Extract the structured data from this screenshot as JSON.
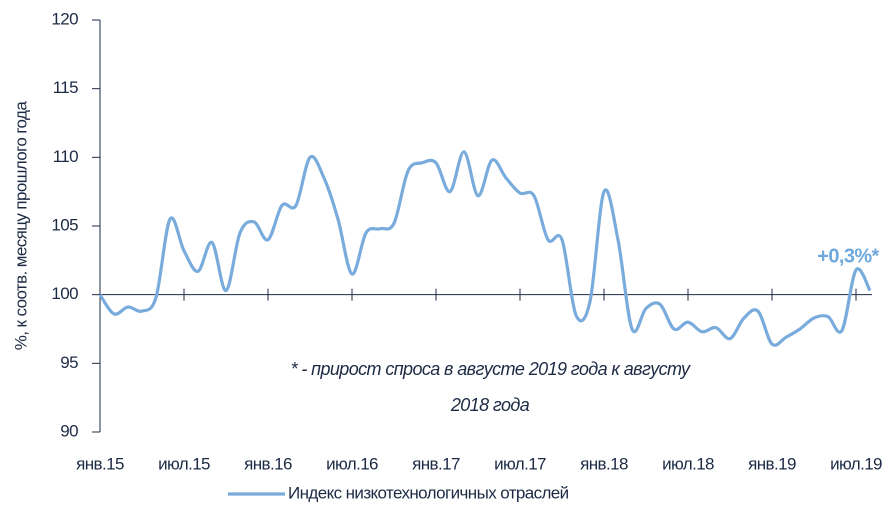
{
  "chart_data": {
    "type": "line",
    "ylabel": "%, к соотв. месяцу прошлого года",
    "categories": [
      "янв.15",
      null,
      null,
      null,
      null,
      null,
      "июл.15",
      null,
      null,
      null,
      null,
      null,
      "янв.16",
      null,
      null,
      null,
      null,
      null,
      "июл.16",
      null,
      null,
      null,
      null,
      null,
      "янв.17",
      null,
      null,
      null,
      null,
      null,
      "июл.17",
      null,
      null,
      null,
      null,
      null,
      "янв.18",
      null,
      null,
      null,
      null,
      null,
      "июл.18",
      null,
      null,
      null,
      null,
      null,
      "янв.19",
      null,
      null,
      null,
      null,
      null,
      "июл.19",
      null
    ],
    "series": [
      {
        "name": "Индекс низкотехнологичных отраслей",
        "color": "#79acdc",
        "values": [
          100,
          98.6,
          99.1,
          98.8,
          99.8,
          105.5,
          103.2,
          101.7,
          103.8,
          100.3,
          104.5,
          105.3,
          104.0,
          106.5,
          106.5,
          110.0,
          108.5,
          105.5,
          101.5,
          104.5,
          104.8,
          105.2,
          109.0,
          109.6,
          109.6,
          107.5,
          110.4,
          107.2,
          109.8,
          108.5,
          107.4,
          107.2,
          104.0,
          104.0,
          98.5,
          99.5,
          107.5,
          104.0,
          97.5,
          99.0,
          99.3,
          97.5,
          98.0,
          97.3,
          97.6,
          96.8,
          98.3,
          98.8,
          96.4,
          96.9,
          97.5,
          98.3,
          98.4,
          97.4,
          101.8,
          100.3
        ]
      }
    ],
    "ylim": [
      90,
      120
    ],
    "yticks": [
      90,
      95,
      100,
      105,
      110,
      115,
      120
    ],
    "baseline": 100,
    "highlight": "+0,3%*",
    "annotation": [
      "* - прирост спроса в августе 2019 года к августу",
      "2018 года"
    ],
    "legend": "bottom"
  }
}
